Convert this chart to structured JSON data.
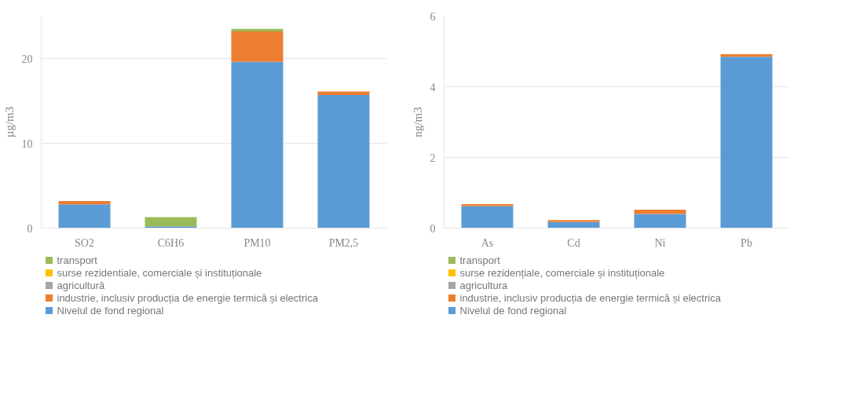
{
  "chart_data": [
    {
      "type": "bar",
      "stacked": true,
      "ylabel": "µg/m3",
      "categories": [
        "SO2",
        "C6H6",
        "PM10",
        "PM2,5"
      ],
      "ylim": [
        0,
        25
      ],
      "yticks": [
        0,
        10,
        20
      ],
      "grid": "y",
      "legend": "bottom",
      "series": [
        {
          "name": "Nivelul de fond regional",
          "color": "#5b9bd5",
          "values": [
            2.8,
            0.2,
            19.6,
            15.7
          ]
        },
        {
          "name": "industrie, inclusiv producția de energie termică și electrica",
          "color": "#ed7d31",
          "values": [
            0.4,
            0,
            3.6,
            0.4
          ]
        },
        {
          "name": "agricultură",
          "color": "#a5a5a5",
          "values": [
            0,
            0,
            0,
            0
          ]
        },
        {
          "name": "surse rezidentiale, comerciale și instituționale",
          "color": "#ffc000",
          "values": [
            0,
            0,
            0,
            0
          ]
        },
        {
          "name": "transport",
          "color": "#9bbb59",
          "values": [
            0,
            1.1,
            0.3,
            0
          ]
        }
      ]
    },
    {
      "type": "bar",
      "stacked": true,
      "ylabel": "ng/m3",
      "categories": [
        "As",
        "Cd",
        "Ni",
        "Pb"
      ],
      "ylim": [
        0,
        6
      ],
      "yticks": [
        0,
        2,
        4,
        6
      ],
      "grid": "y",
      "legend": "bottom",
      "series": [
        {
          "name": "Nivelul de fond regional",
          "color": "#5b9bd5",
          "values": [
            0.62,
            0.17,
            0.4,
            4.85
          ]
        },
        {
          "name": "industrie, inclusiv producția de energie termică și electrica",
          "color": "#ed7d31",
          "values": [
            0.06,
            0.06,
            0.12,
            0.07
          ]
        },
        {
          "name": "agricultura",
          "color": "#a5a5a5",
          "values": [
            0,
            0,
            0,
            0
          ]
        },
        {
          "name": "surse rezidențiale, comerciale și instituționale",
          "color": "#ffc000",
          "values": [
            0,
            0,
            0,
            0
          ]
        },
        {
          "name": "transport",
          "color": "#9bbb59",
          "values": [
            0,
            0,
            0,
            0
          ]
        }
      ]
    }
  ]
}
